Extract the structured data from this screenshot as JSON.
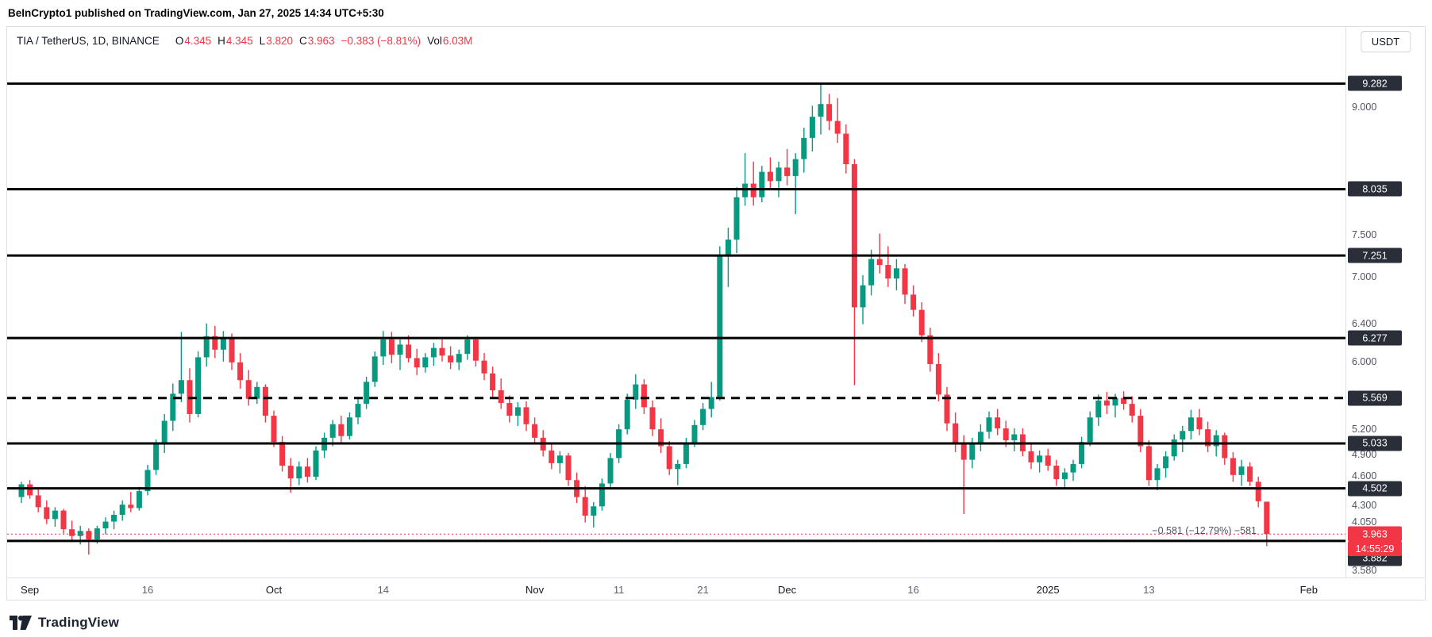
{
  "header": {
    "attribution": "BeInCrypto1 published on TradingView.com, Jan 27, 2025 14:34 UTC+5:30"
  },
  "legend": {
    "symbol": "TIA / TetherUS, 1D, BINANCE",
    "o_label": "O",
    "o": "4.345",
    "h_label": "H",
    "h": "4.345",
    "l_label": "L",
    "l": "3.820",
    "c_label": "C",
    "c": "3.963",
    "change": "−0.383 (−8.81%)",
    "vol_label": "Vol",
    "vol": "6.03M"
  },
  "toolbar": {
    "currency_button": "USDT"
  },
  "footer": {
    "logo_text": "TradingView"
  },
  "chart_data": {
    "type": "candlestick",
    "title": "TIA / TetherUS, 1D, BINANCE",
    "ylim": [
      3.45,
      9.95
    ],
    "grid": false,
    "annotation": "−0.581 (−12.79%) −581",
    "colors": {
      "up": "#089981",
      "down": "#F23645",
      "level": "#000000",
      "label_box": "#2a2e39",
      "label_text": "#ffffff"
    },
    "layout": {
      "left_pad": 18,
      "step": 10.6,
      "body_width": 7
    },
    "levels": [
      {
        "value": 9.282,
        "label": "9.282",
        "style": "solid"
      },
      {
        "value": 8.035,
        "label": "8.035",
        "style": "solid"
      },
      {
        "value": 7.251,
        "label": "7.251",
        "style": "solid"
      },
      {
        "value": 6.277,
        "label": "6.277",
        "style": "solid"
      },
      {
        "value": 5.569,
        "label": "5.569",
        "style": "dashed"
      },
      {
        "value": 5.033,
        "label": "5.033",
        "style": "solid"
      },
      {
        "value": 4.502,
        "label": "4.502",
        "style": "solid"
      },
      {
        "value": 3.882,
        "label": "3.882",
        "style": "solid",
        "label_offset": 22
      }
    ],
    "last_price": {
      "value": 3.963,
      "label": "3.963",
      "countdown": "14:55:29"
    },
    "y_axis_ticks": [
      {
        "value": 9.0,
        "label": "9.000"
      },
      {
        "value": 7.5,
        "label": "7.500"
      },
      {
        "value": 7.0,
        "label": "7.000"
      },
      {
        "value": 6.4,
        "label": "6.400",
        "offset": -5
      },
      {
        "value": 6.0,
        "label": "6.000"
      },
      {
        "value": 5.2,
        "label": "5.200"
      },
      {
        "value": 4.9,
        "label": "4.900"
      },
      {
        "value": 4.6,
        "label": "4.600",
        "offset": -5
      },
      {
        "value": 4.3,
        "label": "4.300"
      },
      {
        "value": 4.05,
        "label": "4.050",
        "offset": -6
      },
      {
        "value": 3.58,
        "label": "3.580",
        "offset": 5
      }
    ],
    "x_ticks": [
      {
        "index": 1,
        "label": "Sep",
        "major": true
      },
      {
        "index": 15,
        "label": "16",
        "major": false
      },
      {
        "index": 30,
        "label": "Oct",
        "major": true
      },
      {
        "index": 43,
        "label": "14",
        "major": false
      },
      {
        "index": 61,
        "label": "Nov",
        "major": true
      },
      {
        "index": 71,
        "label": "11",
        "major": false
      },
      {
        "index": 81,
        "label": "21",
        "major": false
      },
      {
        "index": 91,
        "label": "Dec",
        "major": true
      },
      {
        "index": 106,
        "label": "16",
        "major": false
      },
      {
        "index": 122,
        "label": "2025",
        "major": true
      },
      {
        "index": 134,
        "label": "13",
        "major": false
      },
      {
        "index": 153,
        "label": "Feb",
        "major": true
      }
    ],
    "candles": [
      [
        4.4,
        4.58,
        4.33,
        4.55
      ],
      [
        4.55,
        4.6,
        4.38,
        4.42
      ],
      [
        4.42,
        4.5,
        4.22,
        4.28
      ],
      [
        4.28,
        4.36,
        4.08,
        4.14
      ],
      [
        4.14,
        4.28,
        4.05,
        4.24
      ],
      [
        4.24,
        4.26,
        3.97,
        4.02
      ],
      [
        4.02,
        4.12,
        3.88,
        3.94
      ],
      [
        3.94,
        4.06,
        3.84,
        4.0
      ],
      [
        4.0,
        4.03,
        3.72,
        3.9
      ],
      [
        3.9,
        4.06,
        3.85,
        4.03
      ],
      [
        4.03,
        4.16,
        3.96,
        4.11
      ],
      [
        4.11,
        4.24,
        4.02,
        4.19
      ],
      [
        4.19,
        4.36,
        4.12,
        4.31
      ],
      [
        4.31,
        4.46,
        4.22,
        4.27
      ],
      [
        4.27,
        4.52,
        4.24,
        4.47
      ],
      [
        4.47,
        4.78,
        4.42,
        4.72
      ],
      [
        4.72,
        5.08,
        4.66,
        5.02
      ],
      [
        5.02,
        5.38,
        4.92,
        5.3
      ],
      [
        5.3,
        5.74,
        5.18,
        5.62
      ],
      [
        5.62,
        6.35,
        5.52,
        5.78
      ],
      [
        5.78,
        5.92,
        5.28,
        5.38
      ],
      [
        5.38,
        6.12,
        5.34,
        6.05
      ],
      [
        6.05,
        6.45,
        5.94,
        6.3
      ],
      [
        6.3,
        6.42,
        6.04,
        6.14
      ],
      [
        6.14,
        6.36,
        6.0,
        6.28
      ],
      [
        6.28,
        6.33,
        5.9,
        5.99
      ],
      [
        5.99,
        6.1,
        5.68,
        5.78
      ],
      [
        5.78,
        5.9,
        5.48,
        5.56
      ],
      [
        5.56,
        5.76,
        5.5,
        5.7
      ],
      [
        5.7,
        5.73,
        5.28,
        5.36
      ],
      [
        5.36,
        5.42,
        4.99,
        5.05
      ],
      [
        5.05,
        5.12,
        4.7,
        4.77
      ],
      [
        4.77,
        4.86,
        4.45,
        4.62
      ],
      [
        4.62,
        4.82,
        4.54,
        4.76
      ],
      [
        4.76,
        4.86,
        4.57,
        4.64
      ],
      [
        4.64,
        5.0,
        4.6,
        4.95
      ],
      [
        4.95,
        5.16,
        4.86,
        5.1
      ],
      [
        5.1,
        5.31,
        5.0,
        5.26
      ],
      [
        5.26,
        5.36,
        5.04,
        5.12
      ],
      [
        5.12,
        5.4,
        5.08,
        5.34
      ],
      [
        5.34,
        5.56,
        5.26,
        5.5
      ],
      [
        5.5,
        5.82,
        5.44,
        5.76
      ],
      [
        5.76,
        6.12,
        5.7,
        6.06
      ],
      [
        6.06,
        6.36,
        5.96,
        6.26
      ],
      [
        6.26,
        6.35,
        5.98,
        6.08
      ],
      [
        6.08,
        6.26,
        5.9,
        6.2
      ],
      [
        6.2,
        6.31,
        5.99,
        6.04
      ],
      [
        6.04,
        6.15,
        5.84,
        5.93
      ],
      [
        5.93,
        6.1,
        5.87,
        6.05
      ],
      [
        6.05,
        6.22,
        5.95,
        6.16
      ],
      [
        6.16,
        6.26,
        6.0,
        6.07
      ],
      [
        6.07,
        6.18,
        5.91,
        5.99
      ],
      [
        5.99,
        6.14,
        5.9,
        6.09
      ],
      [
        6.09,
        6.31,
        6.02,
        6.26
      ],
      [
        6.26,
        6.29,
        5.94,
        6.01
      ],
      [
        6.01,
        6.1,
        5.78,
        5.86
      ],
      [
        5.86,
        5.94,
        5.58,
        5.66
      ],
      [
        5.66,
        5.8,
        5.44,
        5.51
      ],
      [
        5.51,
        5.6,
        5.28,
        5.36
      ],
      [
        5.36,
        5.52,
        5.24,
        5.46
      ],
      [
        5.46,
        5.53,
        5.18,
        5.26
      ],
      [
        5.26,
        5.34,
        5.03,
        5.1
      ],
      [
        5.1,
        5.19,
        4.88,
        4.95
      ],
      [
        4.95,
        5.04,
        4.73,
        4.8
      ],
      [
        4.8,
        4.94,
        4.68,
        4.89
      ],
      [
        4.89,
        4.92,
        4.53,
        4.6
      ],
      [
        4.6,
        4.69,
        4.33,
        4.4
      ],
      [
        4.4,
        4.53,
        4.1,
        4.18
      ],
      [
        4.18,
        4.34,
        4.04,
        4.29
      ],
      [
        4.29,
        4.62,
        4.24,
        4.56
      ],
      [
        4.56,
        4.92,
        4.5,
        4.86
      ],
      [
        4.86,
        5.26,
        4.8,
        5.2
      ],
      [
        5.2,
        5.62,
        5.14,
        5.55
      ],
      [
        5.55,
        5.85,
        5.44,
        5.73
      ],
      [
        5.73,
        5.79,
        5.38,
        5.46
      ],
      [
        5.46,
        5.54,
        5.12,
        5.2
      ],
      [
        5.2,
        5.33,
        4.92,
        5.0
      ],
      [
        5.0,
        5.06,
        4.66,
        4.73
      ],
      [
        4.73,
        4.84,
        4.54,
        4.79
      ],
      [
        4.79,
        5.1,
        4.74,
        5.04
      ],
      [
        5.04,
        5.31,
        4.99,
        5.25
      ],
      [
        5.25,
        5.51,
        5.19,
        5.44
      ],
      [
        5.44,
        5.76,
        5.34,
        5.58
      ],
      [
        5.58,
        7.36,
        5.54,
        7.24
      ],
      [
        7.24,
        7.58,
        6.88,
        7.44
      ],
      [
        7.44,
        8.06,
        7.28,
        7.94
      ],
      [
        7.94,
        8.46,
        7.84,
        8.1
      ],
      [
        8.1,
        8.36,
        7.84,
        7.94
      ],
      [
        7.94,
        8.31,
        7.88,
        8.24
      ],
      [
        8.24,
        8.41,
        8.03,
        8.13
      ],
      [
        8.13,
        8.36,
        7.94,
        8.29
      ],
      [
        8.29,
        8.51,
        8.08,
        8.19
      ],
      [
        8.19,
        8.46,
        7.74,
        8.39
      ],
      [
        8.39,
        8.76,
        8.23,
        8.64
      ],
      [
        8.64,
        9.02,
        8.48,
        8.89
      ],
      [
        8.89,
        9.28,
        8.68,
        9.04
      ],
      [
        9.04,
        9.16,
        8.73,
        8.84
      ],
      [
        8.84,
        9.11,
        8.58,
        8.69
      ],
      [
        8.69,
        8.8,
        8.22,
        8.33
      ],
      [
        8.33,
        8.39,
        5.72,
        6.64
      ],
      [
        6.64,
        7.02,
        6.44,
        6.9
      ],
      [
        6.9,
        7.32,
        6.78,
        7.21
      ],
      [
        7.21,
        7.51,
        7.04,
        7.14
      ],
      [
        7.14,
        7.36,
        6.88,
        6.98
      ],
      [
        6.98,
        7.21,
        6.84,
        7.1
      ],
      [
        7.1,
        7.15,
        6.68,
        6.79
      ],
      [
        6.79,
        6.9,
        6.53,
        6.61
      ],
      [
        6.61,
        6.7,
        6.23,
        6.31
      ],
      [
        6.31,
        6.4,
        5.88,
        5.97
      ],
      [
        5.97,
        6.1,
        5.53,
        5.61
      ],
      [
        5.61,
        5.7,
        5.18,
        5.27
      ],
      [
        5.27,
        5.4,
        4.93,
        5.04
      ],
      [
        5.04,
        5.13,
        4.2,
        4.84
      ],
      [
        4.84,
        5.1,
        4.74,
        5.04
      ],
      [
        5.04,
        5.26,
        4.94,
        5.17
      ],
      [
        5.17,
        5.41,
        5.09,
        5.34
      ],
      [
        5.34,
        5.44,
        5.13,
        5.21
      ],
      [
        5.21,
        5.3,
        4.99,
        5.07
      ],
      [
        5.07,
        5.21,
        4.94,
        5.14
      ],
      [
        5.14,
        5.21,
        4.88,
        4.94
      ],
      [
        4.94,
        5.04,
        4.73,
        4.81
      ],
      [
        4.81,
        4.95,
        4.69,
        4.89
      ],
      [
        4.89,
        4.97,
        4.71,
        4.77
      ],
      [
        4.77,
        4.84,
        4.53,
        4.61
      ],
      [
        4.61,
        4.74,
        4.49,
        4.69
      ],
      [
        4.69,
        4.84,
        4.59,
        4.79
      ],
      [
        4.79,
        5.11,
        4.74,
        5.05
      ],
      [
        5.05,
        5.41,
        5.0,
        5.34
      ],
      [
        5.34,
        5.61,
        5.24,
        5.54
      ],
      [
        5.54,
        5.64,
        5.38,
        5.48
      ],
      [
        5.48,
        5.62,
        5.34,
        5.57
      ],
      [
        5.57,
        5.65,
        5.43,
        5.5
      ],
      [
        5.5,
        5.59,
        5.28,
        5.36
      ],
      [
        5.36,
        5.44,
        4.93,
        5.0
      ],
      [
        5.0,
        5.07,
        4.53,
        4.6
      ],
      [
        4.6,
        4.79,
        4.48,
        4.74
      ],
      [
        4.74,
        4.94,
        4.63,
        4.88
      ],
      [
        4.88,
        5.14,
        4.83,
        5.08
      ],
      [
        5.08,
        5.24,
        4.93,
        5.18
      ],
      [
        5.18,
        5.43,
        5.08,
        5.34
      ],
      [
        5.34,
        5.44,
        5.13,
        5.2
      ],
      [
        5.2,
        5.29,
        4.93,
        5.0
      ],
      [
        5.0,
        5.19,
        4.88,
        5.13
      ],
      [
        5.13,
        5.16,
        4.78,
        4.86
      ],
      [
        4.86,
        4.93,
        4.58,
        4.66
      ],
      [
        4.66,
        4.84,
        4.53,
        4.76
      ],
      [
        4.76,
        4.81,
        4.53,
        4.58
      ],
      [
        4.58,
        4.64,
        4.28,
        4.35
      ],
      [
        4.345,
        4.345,
        3.82,
        3.963
      ]
    ]
  }
}
